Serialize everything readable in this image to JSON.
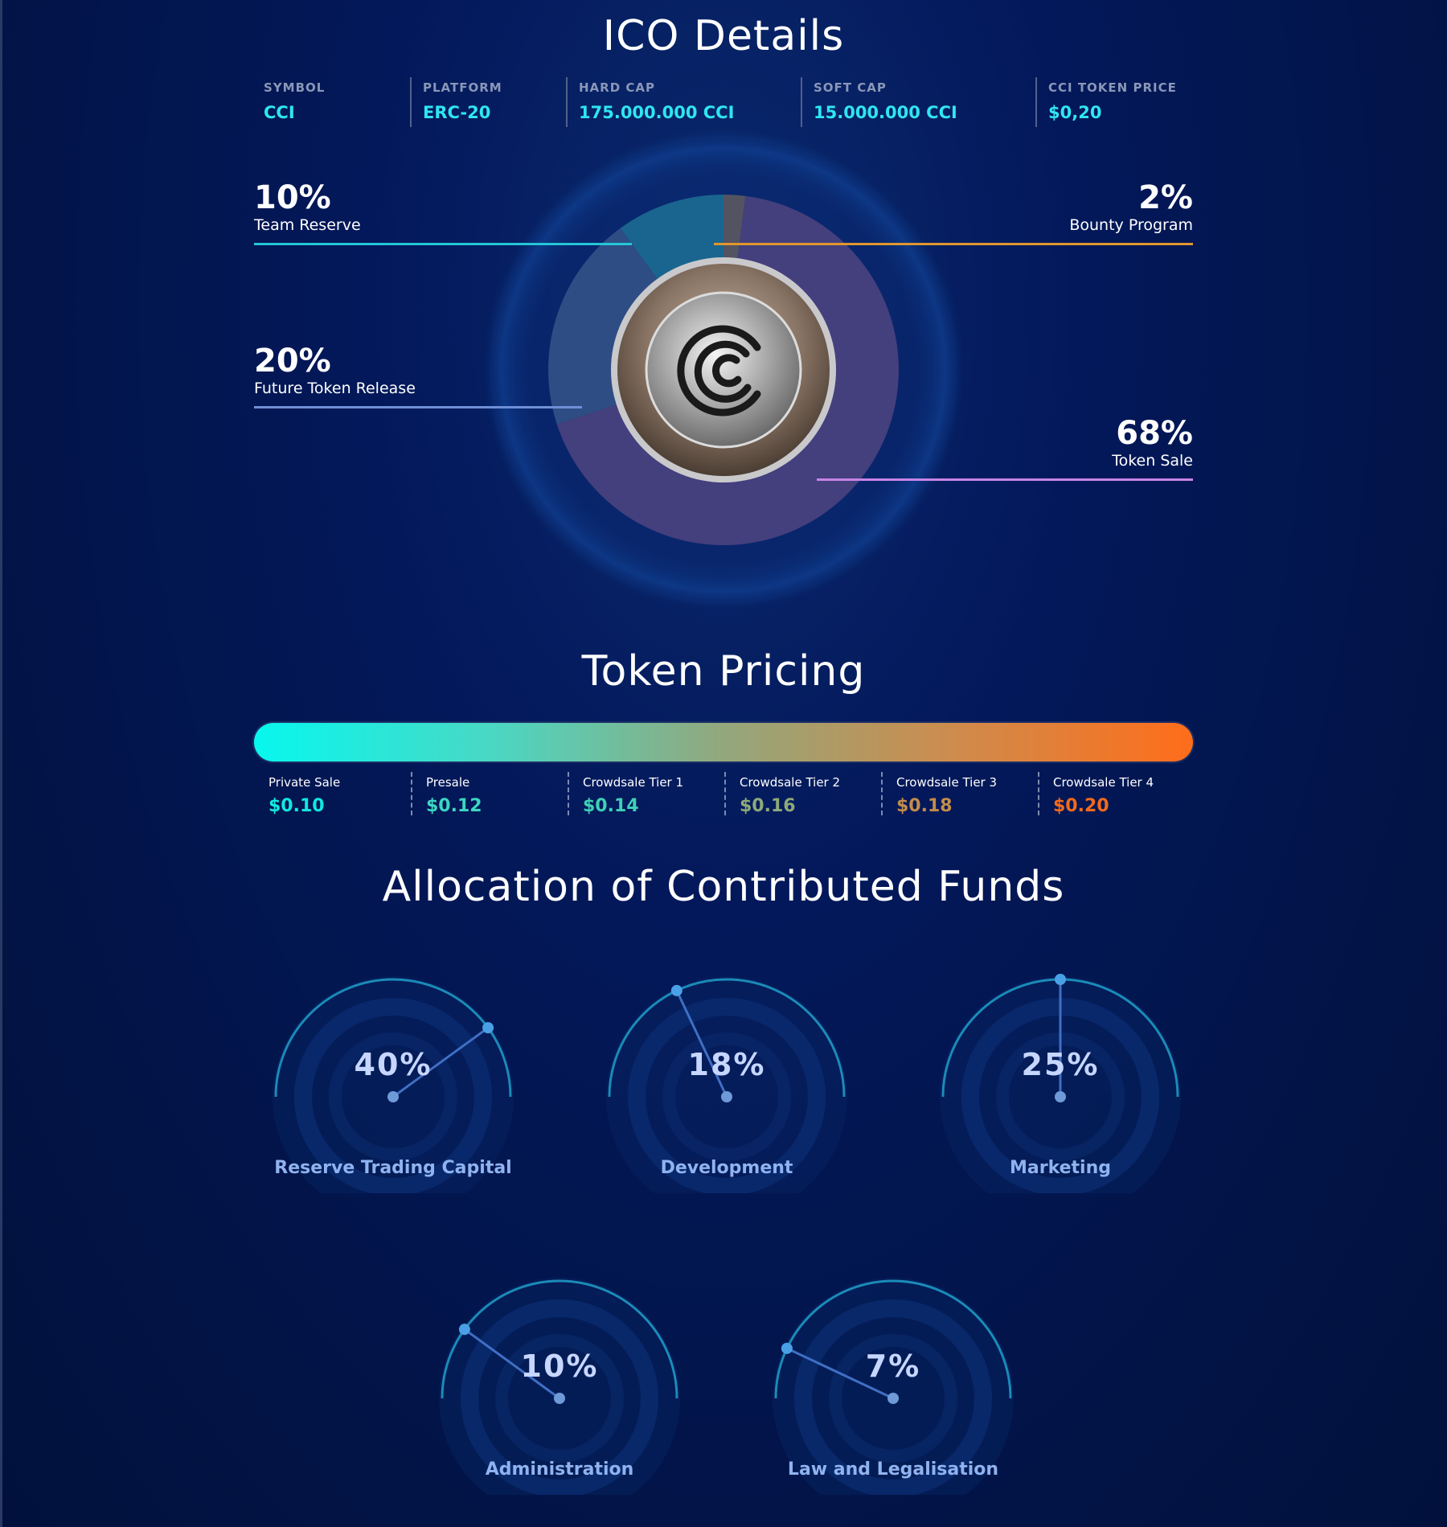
{
  "ico": {
    "title": "ICO Details",
    "stats": [
      {
        "label": "SYMBOL",
        "value": "CCI"
      },
      {
        "label": "PLATFORM",
        "value": "ERC-20"
      },
      {
        "label": "HARD CAP",
        "value": "175.000.000 CCI"
      },
      {
        "label": "SOFT CAP",
        "value": "15.000.000 CCI"
      },
      {
        "label": "CCI TOKEN PRICE",
        "value": "$0,20"
      }
    ],
    "distribution": [
      {
        "pct": "10%",
        "name": "Team Reserve",
        "value": 10,
        "color": "#0e5d8a",
        "line": "#24c6d6"
      },
      {
        "pct": "20%",
        "name": "Future Token Release",
        "value": 20,
        "color": "#23447e",
        "line": "#6f8fd6"
      },
      {
        "pct": "68%",
        "name": "Token Sale",
        "value": 68,
        "color": "#3a3576",
        "line": "#c784e6"
      },
      {
        "pct": "2%",
        "name": "Bounty Program",
        "value": 2,
        "color": "#4a4a5a",
        "line": "#e0972e"
      }
    ]
  },
  "pricing": {
    "title": "Token Pricing",
    "tiers": [
      {
        "name": "Private Sale",
        "price": "$0.10",
        "color": "#11e8e0"
      },
      {
        "name": "Presale",
        "price": "$0.12",
        "color": "#3cd6c2"
      },
      {
        "name": "Crowdsale Tier 1",
        "price": "$0.14",
        "color": "#3fd0b6"
      },
      {
        "name": "Crowdsale Tier 2",
        "price": "$0.16",
        "color": "#8ea978"
      },
      {
        "name": "Crowdsale Tier 3",
        "price": "$0.18",
        "color": "#c38c4c"
      },
      {
        "name": "Crowdsale Tier 4",
        "price": "$0.20",
        "color": "#f36a1c"
      }
    ]
  },
  "allocation": {
    "title": "Allocation of Contributed Funds",
    "items": [
      {
        "pct": "40%",
        "value": 40,
        "name": "Reserve Trading Capital"
      },
      {
        "pct": "18%",
        "value": 18,
        "name": "Development"
      },
      {
        "pct": "25%",
        "value": 25,
        "name": "Marketing"
      },
      {
        "pct": "10%",
        "value": 10,
        "name": "Administration"
      },
      {
        "pct": "7%",
        "value": 7,
        "name": "Law and Legalisation"
      }
    ]
  }
}
